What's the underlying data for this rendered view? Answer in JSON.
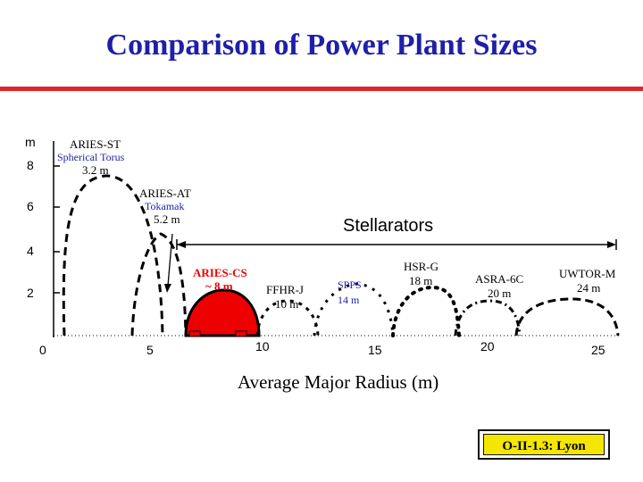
{
  "title": "Comparison of Power Plant Sizes",
  "y_axis": {
    "unit": "m",
    "ticks": [
      "8",
      "6",
      "4",
      "2"
    ]
  },
  "x_axis": {
    "label": "Average Major Radius (m)",
    "ticks": [
      "0",
      "5",
      "10",
      "15",
      "20",
      "25"
    ]
  },
  "devices": {
    "aries_st": {
      "name": "ARIES-ST",
      "type": "Spherical Torus",
      "radius": "3.2 m",
      "major_radius_m": 3.2
    },
    "aries_at": {
      "name": "ARIES-AT",
      "type": "Tokamak",
      "radius": "5.2 m",
      "major_radius_m": 5.2
    },
    "aries_cs": {
      "name": "ARIES-CS",
      "radius": "~ 8 m",
      "major_radius_m": 8,
      "color": "#ee0000"
    },
    "ffhr_j": {
      "name": "FFHR-J",
      "radius": "10 m",
      "major_radius_m": 10
    },
    "spps": {
      "name": "SPPS",
      "radius": "14 m",
      "major_radius_m": 14
    },
    "hsr_g": {
      "name": "HSR-G",
      "radius": "18 m",
      "major_radius_m": 18
    },
    "asra_6c": {
      "name": "ASRA-6C",
      "radius": "20 m",
      "major_radius_m": 20
    },
    "uwtor_m": {
      "name": "UWTOR-M",
      "radius": "24 m",
      "major_radius_m": 24
    }
  },
  "stellarators_label": "Stellarators",
  "footer": "O-II-1.3: Lyon",
  "colors": {
    "title": "#1f1fa8",
    "rule": "#e2242b",
    "footer_bg": "#f5e600",
    "accent": "#ee0000"
  }
}
